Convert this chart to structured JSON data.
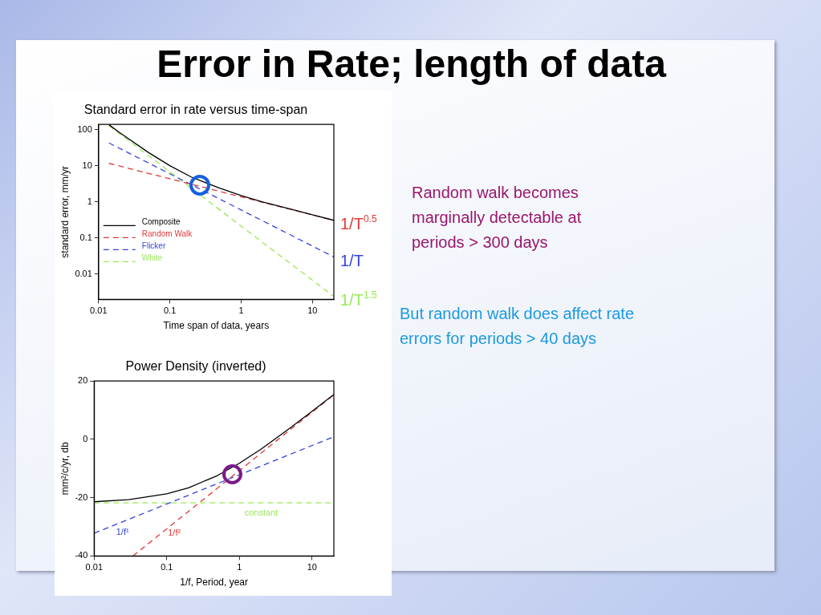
{
  "chart_data": [
    {
      "type": "other",
      "title": "Error in Rate; length of data",
      "annotations": [
        "Random walk becomes marginally detectable at periods > 300 days",
        "But random walk does affect rate errors for periods > 40 days"
      ]
    },
    {
      "type": "line",
      "title": "Standard error in rate versus time-span",
      "xlabel": "Time span of data, years",
      "ylabel": "standard error, mm/yr",
      "log": "xy",
      "xlim": [
        0.01,
        20
      ],
      "ylim": [
        0.002,
        140
      ],
      "xticks": [
        0.01,
        0.1,
        1,
        10
      ],
      "yticks": [
        0.01,
        0.1,
        1,
        10,
        100
      ],
      "legend": "left",
      "marker": "none",
      "series": [
        {
          "name": "Composite",
          "color": "#000000",
          "line_style": "solid",
          "x": [
            0.014,
            0.02,
            0.05,
            0.1,
            0.2,
            0.5,
            1,
            2,
            5,
            10,
            20
          ],
          "values": [
            137,
            82,
            23.5,
            10.1,
            4.9,
            2.4,
            1.5,
            1.0,
            0.63,
            0.44,
            0.31
          ]
        },
        {
          "name": "Random Walk",
          "color": "#e03a3a",
          "line_style": "dashed",
          "x": [
            0.014,
            20
          ],
          "values": [
            11.7,
            0.31
          ]
        },
        {
          "name": "Flicker",
          "color": "#3344dd",
          "line_style": "dashed",
          "x": [
            0.014,
            20
          ],
          "values": [
            43,
            0.03
          ]
        },
        {
          "name": "White",
          "color": "#99e855",
          "line_style": "dashed",
          "x": [
            0.014,
            20
          ],
          "values": [
            130,
            0.0024
          ]
        }
      ],
      "annotations": [
        {
          "text": "1/T$^{0.5}$",
          "x": 20,
          "y": 0.31
        },
        {
          "text": "1/T",
          "x": 20,
          "y": 0.03
        },
        {
          "text": "1/T$^{1.5}$",
          "x": 20,
          "y": 0.0024
        }
      ]
    },
    {
      "type": "line",
      "title": "Power Density (inverted)",
      "xlabel": "1/f, Period, year",
      "ylabel": "mm²/c/yr, db",
      "log": "x",
      "xlim": [
        0.01,
        20
      ],
      "ylim": [
        -40,
        20
      ],
      "xticks": [
        0.01,
        0.1,
        1,
        10
      ],
      "yticks": [
        -40,
        -20,
        0,
        20
      ],
      "marker": "none",
      "series": [
        {
          "color": "#000000",
          "line_style": "solid",
          "x": [
            0.01,
            0.03,
            0.1,
            0.2,
            0.5,
            1,
            2,
            5,
            10,
            20
          ],
          "values": [
            -21.4,
            -20.7,
            -18.7,
            -16.6,
            -12.4,
            -8.2,
            -3.3,
            3.9,
            9.6,
            15.4
          ]
        },
        {
          "color": "#e03a3a",
          "line_style": "dashed",
          "x": [
            0.0342,
            20
          ],
          "values": [
            -40,
            15.3
          ]
        },
        {
          "color": "#3344dd",
          "line_style": "dashed",
          "x": [
            0.01,
            20
          ],
          "values": [
            -32.2,
            0.9
          ]
        },
        {
          "color": "#99e855",
          "line_style": "dashed",
          "x": [
            0.01,
            20
          ],
          "values": [
            -21.8,
            -21.8
          ]
        }
      ],
      "annotations": [
        {
          "text": "constant",
          "x": 2,
          "y": -21.8
        },
        {
          "text": "1/f¹",
          "x": 0.0246,
          "y": -28.3
        },
        {
          "text": "1/f²",
          "x": 0.127,
          "y": -28.6
        }
      ]
    }
  ]
}
